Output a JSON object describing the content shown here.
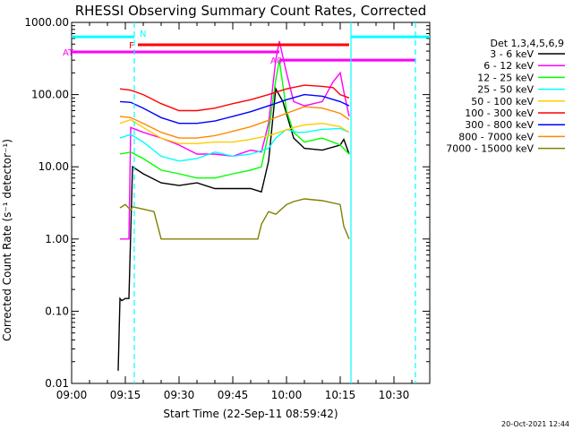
{
  "title": "RHESSI Observing Summary Count Rates, Corrected",
  "footer_date": "20-Oct-2021 12:44",
  "chart_data": {
    "type": "line",
    "xlabel": "Start Time (22-Sep-11 08:59:42)",
    "ylabel": "Corrected Count Rate (s⁻¹ detector⁻¹)",
    "x_unit": "minutes from 09:00",
    "xlim": [
      0,
      100
    ],
    "ylim": [
      0.01,
      1000
    ],
    "yscale": "log",
    "x_ticks": [
      {
        "label": "09:00",
        "value": 0
      },
      {
        "label": "09:15",
        "value": 15
      },
      {
        "label": "09:30",
        "value": 30
      },
      {
        "label": "09:45",
        "value": 45
      },
      {
        "label": "10:00",
        "value": 60
      },
      {
        "label": "10:15",
        "value": 75
      },
      {
        "label": "10:30",
        "value": 90
      }
    ],
    "y_ticks": [
      {
        "label": "1000.00",
        "value": 1000
      },
      {
        "label": "100.00",
        "value": 100
      },
      {
        "label": "10.00",
        "value": 10
      },
      {
        "label": "1.00",
        "value": 1
      },
      {
        "label": "0.10",
        "value": 0.1
      },
      {
        "label": "0.01",
        "value": 0.01
      }
    ],
    "legend_header": "Det 1,3,4,5,6,9",
    "legend_position": "outside-right",
    "series": [
      {
        "name": "3 - 6 keV",
        "color": "#000000",
        "x": [
          13.0,
          13.5,
          14.0,
          15.0,
          16.0,
          17.0,
          20,
          25,
          30,
          35,
          40,
          45,
          50,
          53,
          55,
          57,
          59,
          62,
          65,
          70,
          75,
          76,
          77.5
        ],
        "y": [
          0.015,
          0.15,
          0.14,
          0.15,
          0.15,
          10,
          8,
          6,
          5.5,
          6,
          5,
          5,
          5,
          4.5,
          12,
          120,
          80,
          25,
          18,
          17,
          20,
          24,
          15
        ]
      },
      {
        "name": "6 - 12 keV",
        "color": "#ff00ff",
        "x": [
          13.5,
          15.0,
          16.0,
          16.5,
          20,
          25,
          30,
          35,
          40,
          45,
          50,
          53,
          55,
          57,
          58,
          60,
          62,
          65,
          70,
          73,
          75,
          76,
          77.5
        ],
        "y": [
          1,
          1,
          1,
          35,
          30,
          25,
          20,
          15,
          15,
          14,
          17,
          16,
          40,
          300,
          550,
          200,
          80,
          70,
          80,
          150,
          200,
          110,
          50
        ]
      },
      {
        "name": "12 - 25 keV",
        "color": "#00ff00",
        "x": [
          13.5,
          16.5,
          20,
          25,
          30,
          35,
          40,
          45,
          50,
          53,
          55,
          57,
          58,
          60,
          62,
          65,
          70,
          75,
          77.5
        ],
        "y": [
          15,
          16,
          13,
          9,
          8,
          7,
          7,
          8,
          9,
          10,
          30,
          160,
          300,
          60,
          30,
          22,
          25,
          20,
          15
        ]
      },
      {
        "name": "25 - 50 keV",
        "color": "#00ffff",
        "x": [
          13.5,
          16.5,
          20,
          25,
          30,
          35,
          40,
          45,
          50,
          55,
          57,
          60,
          63,
          65,
          70,
          75,
          77.5
        ],
        "y": [
          25,
          28,
          22,
          14,
          12,
          13,
          16,
          14,
          15,
          18,
          25,
          33,
          30,
          30,
          33,
          34,
          30
        ]
      },
      {
        "name": "50 - 100 keV",
        "color": "#ffcc00",
        "x": [
          13.5,
          16.5,
          20,
          25,
          30,
          35,
          40,
          45,
          50,
          55,
          58,
          62,
          65,
          70,
          75,
          77.5
        ],
        "y": [
          40,
          45,
          35,
          25,
          21,
          21,
          22,
          22,
          24,
          27,
          30,
          35,
          38,
          40,
          36,
          30
        ]
      },
      {
        "name": "100 - 300 keV",
        "color": "#ff0000",
        "x": [
          13.5,
          16.5,
          20,
          25,
          30,
          35,
          40,
          45,
          50,
          55,
          60,
          65,
          70,
          73,
          75,
          77.5
        ],
        "y": [
          120,
          115,
          100,
          75,
          60,
          60,
          65,
          75,
          85,
          100,
          120,
          135,
          130,
          125,
          100,
          90
        ]
      },
      {
        "name": "300 - 800 keV",
        "color": "#0000ff",
        "x": [
          13.5,
          16.5,
          20,
          25,
          30,
          35,
          40,
          45,
          50,
          55,
          60,
          65,
          70,
          75,
          77.5
        ],
        "y": [
          80,
          78,
          65,
          48,
          40,
          40,
          43,
          50,
          58,
          70,
          85,
          100,
          95,
          80,
          70
        ]
      },
      {
        "name": "800 - 7000 keV",
        "color": "#ff8800",
        "x": [
          13.5,
          16.5,
          20,
          25,
          30,
          35,
          40,
          45,
          50,
          55,
          60,
          65,
          70,
          75,
          77.5
        ],
        "y": [
          50,
          48,
          40,
          30,
          25,
          25,
          27,
          31,
          36,
          44,
          55,
          68,
          65,
          55,
          45
        ]
      },
      {
        "name": "7000 - 15000 keV",
        "color": "#808000",
        "x": [
          13.5,
          15,
          16.5,
          17,
          20,
          23,
          25,
          30,
          35,
          40,
          45,
          50,
          52,
          53,
          55,
          57,
          60,
          62,
          65,
          70,
          75,
          76,
          77.5
        ],
        "y": [
          2.7,
          3,
          2.5,
          2.8,
          2.6,
          2.4,
          1,
          1,
          1,
          1,
          1,
          1,
          1,
          1.6,
          2.4,
          2.2,
          3,
          3.3,
          3.6,
          3.4,
          3,
          1.5,
          1
        ]
      }
    ],
    "attenuator_bars": [
      {
        "label": "N",
        "color": "#00ffff",
        "y": 630,
        "segments": [
          [
            0,
            17.5
          ],
          [
            78,
            100
          ]
        ]
      },
      {
        "label": "F",
        "color": "#ff0000",
        "y": 490,
        "segments": [
          [
            18.5,
            77.5
          ]
        ]
      },
      {
        "label": "AT",
        "color": "#ff00ff",
        "y": 390,
        "segments": [
          [
            0,
            58
          ]
        ]
      },
      {
        "label": "A0",
        "color": "#ff00ff",
        "y": 300,
        "segments": [
          [
            58,
            96
          ]
        ]
      }
    ],
    "vertical_markers": [
      {
        "x": 17.5,
        "color": "#00ffff",
        "style": "dashed"
      },
      {
        "x": 78,
        "color": "#00ffff",
        "style": "solid"
      },
      {
        "x": 96,
        "color": "#00ffff",
        "style": "dashed"
      }
    ]
  }
}
